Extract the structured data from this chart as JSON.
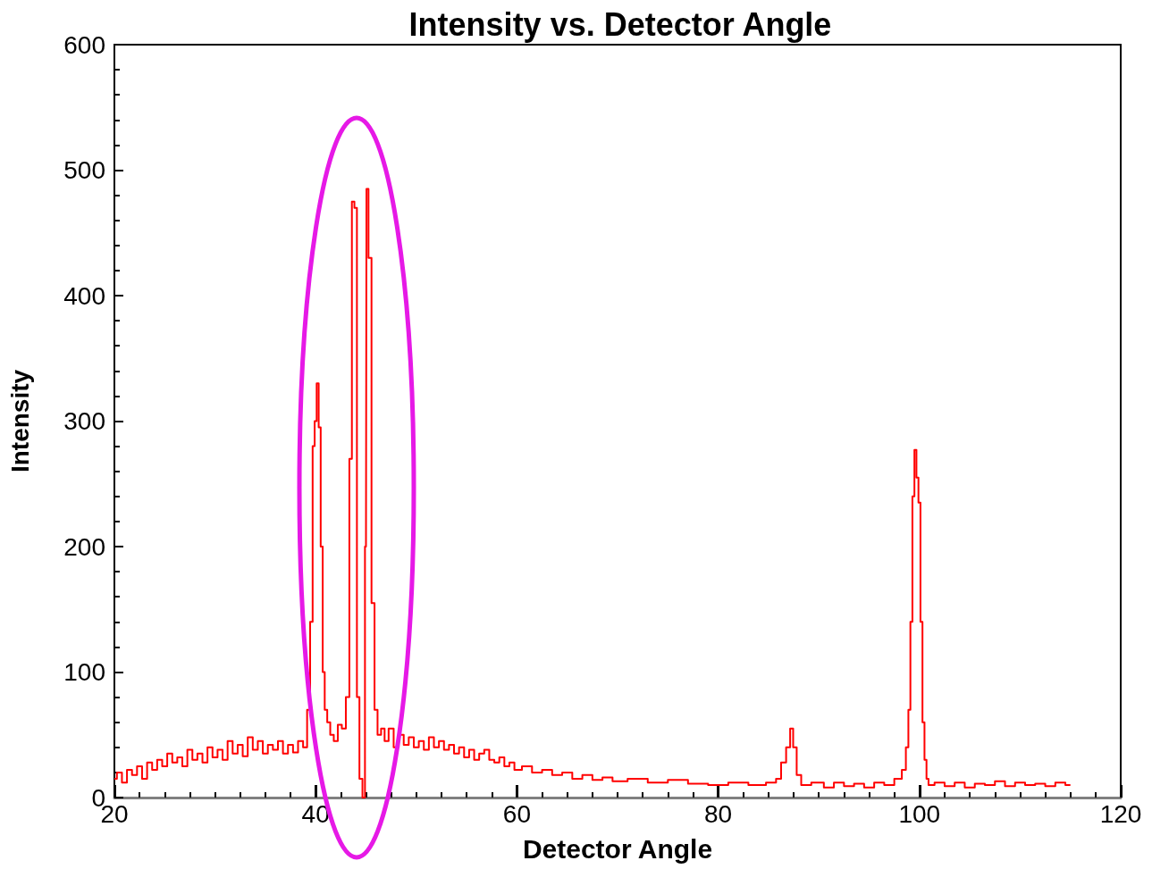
{
  "chart_data": {
    "type": "step",
    "title": "Intensity vs. Detector Angle",
    "xlabel": "Detector Angle",
    "ylabel": "Intensity",
    "x": [
      20,
      20.5,
      21,
      21.5,
      22,
      22.5,
      23,
      23.5,
      24,
      24.5,
      25,
      25.5,
      26,
      26.5,
      27,
      27.5,
      28,
      28.5,
      29,
      29.5,
      30,
      30.5,
      31,
      31.5,
      32,
      32.5,
      33,
      33.5,
      34,
      34.5,
      35,
      35.5,
      36,
      36.5,
      37,
      37.5,
      38,
      38.5,
      39,
      39.3,
      39.6,
      39.8,
      40,
      40.2,
      40.4,
      40.6,
      40.8,
      41,
      41.3,
      41.6,
      42,
      42.4,
      42.8,
      43.2,
      43.5,
      43.7,
      44,
      44.2,
      44.5,
      44.8,
      45,
      45.1,
      45.4,
      45.7,
      46,
      46.3,
      46.7,
      47,
      47.5,
      48,
      48.5,
      49,
      49.5,
      50,
      50.5,
      51,
      51.5,
      52,
      52.5,
      53,
      53.5,
      54,
      54.5,
      55,
      55.5,
      56,
      56.5,
      57,
      57.5,
      58,
      58.5,
      59,
      59.5,
      60,
      61,
      62,
      63,
      64,
      65,
      66,
      67,
      68,
      69,
      70,
      72,
      74,
      76,
      78,
      80,
      82,
      84,
      85.5,
      86,
      86.5,
      87,
      87.3,
      87.6,
      88,
      88.5,
      90,
      91,
      92,
      93,
      94,
      95,
      96,
      97,
      98,
      98.5,
      98.8,
      99,
      99.2,
      99.4,
      99.6,
      99.8,
      100,
      100.2,
      100.4,
      100.6,
      100.8,
      101,
      102,
      103,
      104,
      105,
      106,
      107,
      108,
      109,
      110,
      111,
      112,
      113,
      114,
      115
    ],
    "series": [
      {
        "color": "#ff0000",
        "values": [
          15,
          20,
          12,
          22,
          18,
          25,
          15,
          28,
          22,
          30,
          25,
          35,
          28,
          32,
          25,
          38,
          30,
          35,
          28,
          40,
          32,
          38,
          30,
          45,
          35,
          42,
          33,
          48,
          38,
          45,
          35,
          42,
          38,
          45,
          35,
          42,
          36,
          45,
          40,
          70,
          140,
          280,
          300,
          330,
          295,
          200,
          100,
          70,
          60,
          50,
          45,
          58,
          55,
          80,
          270,
          475,
          470,
          80,
          15,
          0,
          200,
          485,
          430,
          155,
          70,
          50,
          55,
          45,
          55,
          40,
          50,
          42,
          48,
          40,
          45,
          38,
          48,
          40,
          45,
          38,
          42,
          35,
          40,
          32,
          38,
          30,
          35,
          38,
          30,
          28,
          32,
          25,
          28,
          22,
          25,
          20,
          22,
          18,
          20,
          15,
          18,
          14,
          16,
          13,
          15,
          12,
          14,
          11,
          10,
          12,
          10,
          12,
          15,
          28,
          40,
          55,
          40,
          18,
          10,
          12,
          8,
          12,
          9,
          11,
          8,
          12,
          10,
          15,
          22,
          40,
          70,
          140,
          240,
          277,
          255,
          235,
          140,
          60,
          30,
          15,
          10,
          12,
          9,
          12,
          8,
          11,
          10,
          13,
          9,
          12,
          10,
          11,
          9,
          12,
          10
        ]
      }
    ],
    "xlim": [
      20,
      120
    ],
    "xticks": [
      20,
      40,
      60,
      80,
      100,
      120
    ],
    "ylim": [
      0,
      600
    ],
    "yticks": [
      0,
      100,
      200,
      300,
      400,
      500,
      600
    ],
    "grid": false,
    "marker": "none",
    "line_style": "solid"
  }
}
